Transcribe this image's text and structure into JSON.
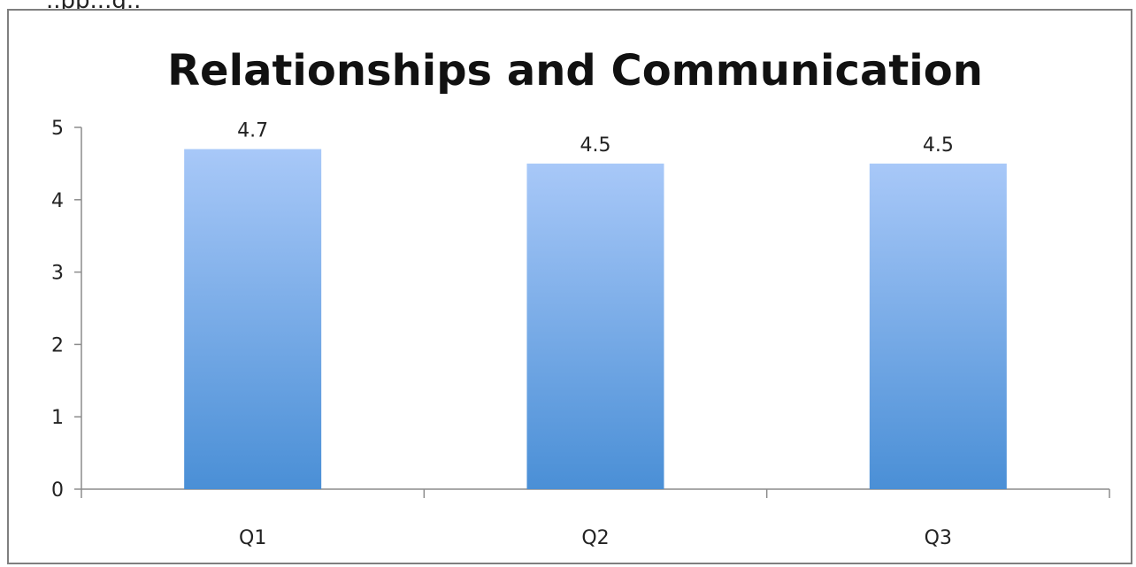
{
  "page": {
    "top_fragment": "..pp...g.."
  },
  "chart_data": {
    "type": "bar",
    "title": "Relationships and Communication",
    "categories": [
      "Q1",
      "Q2",
      "Q3"
    ],
    "values": [
      4.7,
      4.5,
      4.5
    ],
    "data_labels": [
      "4.7",
      "4.5",
      "4.5"
    ],
    "xlabel": "",
    "ylabel": "",
    "ylim": [
      0,
      5
    ],
    "yticks": [
      0,
      1,
      2,
      3,
      4,
      5
    ],
    "grid": false,
    "legend": "none",
    "colors": {
      "bar_top": "#a8c8f8",
      "bar_bottom": "#4a8fd6",
      "axis": "#8c8c8c",
      "frame": "#7f7f7f"
    }
  }
}
